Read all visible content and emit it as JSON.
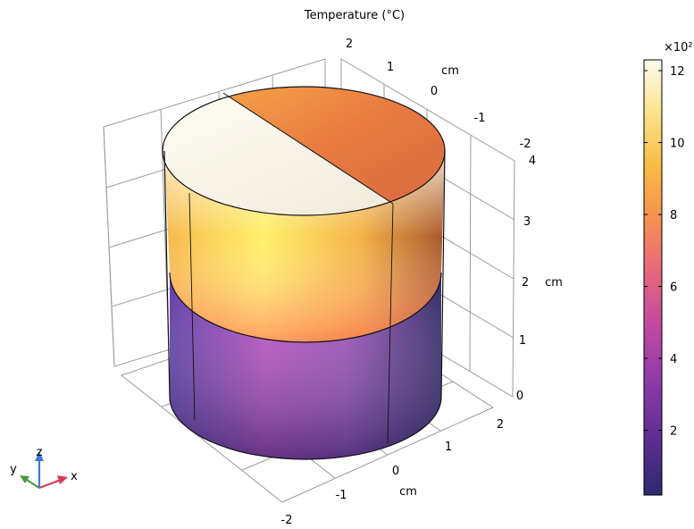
{
  "chart_data": {
    "type": "heatmap",
    "title": "Temperature (°C)",
    "unit_y": "cm",
    "unit_x": "cm",
    "unit_z": "cm",
    "axis_y_ticks": [
      "2",
      "1",
      "0",
      "-1",
      "-2"
    ],
    "axis_z_ticks": [
      "4",
      "3",
      "2",
      "1",
      "0"
    ],
    "axis_x_ticks": [
      "2",
      "1",
      "0",
      "-1",
      "-2"
    ],
    "colorbar": {
      "multiplier": "×10²",
      "ticks": [
        "12",
        "10",
        "8",
        "6",
        "4",
        "2"
      ],
      "tick_values": [
        12,
        10,
        8,
        6,
        4,
        2
      ],
      "range": [
        0.2,
        12.3
      ],
      "colormap": [
        "#2c2a6e",
        "#5a2d8f",
        "#8b3ba8",
        "#c44c9e",
        "#e8697a",
        "#f6924f",
        "#f8bd45",
        "#fbe38e",
        "#fdfbf1"
      ]
    },
    "triad": {
      "x": "x",
      "y": "y",
      "z": "z"
    }
  }
}
